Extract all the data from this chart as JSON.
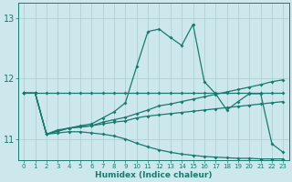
{
  "bg_color": "#cce8ec",
  "grid_color": "#aacccc",
  "line_color": "#1a7a6e",
  "xlabel": "Humidex (Indice chaleur)",
  "ylim": [
    10.65,
    13.25
  ],
  "yticks": [
    11,
    12,
    13
  ],
  "xlim": [
    -0.5,
    23.5
  ],
  "x_ticks": [
    0,
    1,
    2,
    3,
    4,
    5,
    6,
    7,
    8,
    9,
    10,
    11,
    12,
    13,
    14,
    15,
    16,
    17,
    18,
    19,
    20,
    21,
    22,
    23
  ],
  "line_upper": [
    11.76,
    11.76,
    11.76,
    11.76,
    11.76,
    11.76,
    11.76,
    11.76,
    11.76,
    11.76,
    11.76,
    11.76,
    11.76,
    11.76,
    11.76,
    11.76,
    11.76,
    11.76,
    11.76,
    11.76,
    11.76,
    11.76,
    11.76,
    11.76
  ],
  "line_main": [
    11.76,
    11.76,
    11.08,
    11.15,
    11.18,
    11.22,
    11.25,
    11.35,
    11.45,
    11.6,
    12.2,
    12.78,
    12.82,
    12.68,
    12.55,
    12.9,
    11.95,
    11.75,
    11.48,
    11.62,
    11.75,
    11.75,
    10.92,
    10.78
  ],
  "line_mid1": [
    11.76,
    11.76,
    11.08,
    11.13,
    11.18,
    11.2,
    11.22,
    11.25,
    11.28,
    11.3,
    11.35,
    11.38,
    11.4,
    11.42,
    11.44,
    11.46,
    11.48,
    11.5,
    11.52,
    11.54,
    11.56,
    11.58,
    11.6,
    11.62
  ],
  "line_mid2": [
    11.76,
    11.76,
    11.08,
    11.13,
    11.18,
    11.2,
    11.22,
    11.28,
    11.32,
    11.36,
    11.42,
    11.48,
    11.55,
    11.58,
    11.62,
    11.66,
    11.7,
    11.74,
    11.78,
    11.82,
    11.86,
    11.9,
    11.95,
    11.98
  ],
  "line_bottom": [
    11.76,
    11.76,
    11.08,
    11.1,
    11.12,
    11.12,
    11.1,
    11.08,
    11.05,
    11.0,
    10.93,
    10.87,
    10.82,
    10.78,
    10.75,
    10.73,
    10.71,
    10.7,
    10.69,
    10.68,
    10.68,
    10.67,
    10.67,
    10.67
  ]
}
